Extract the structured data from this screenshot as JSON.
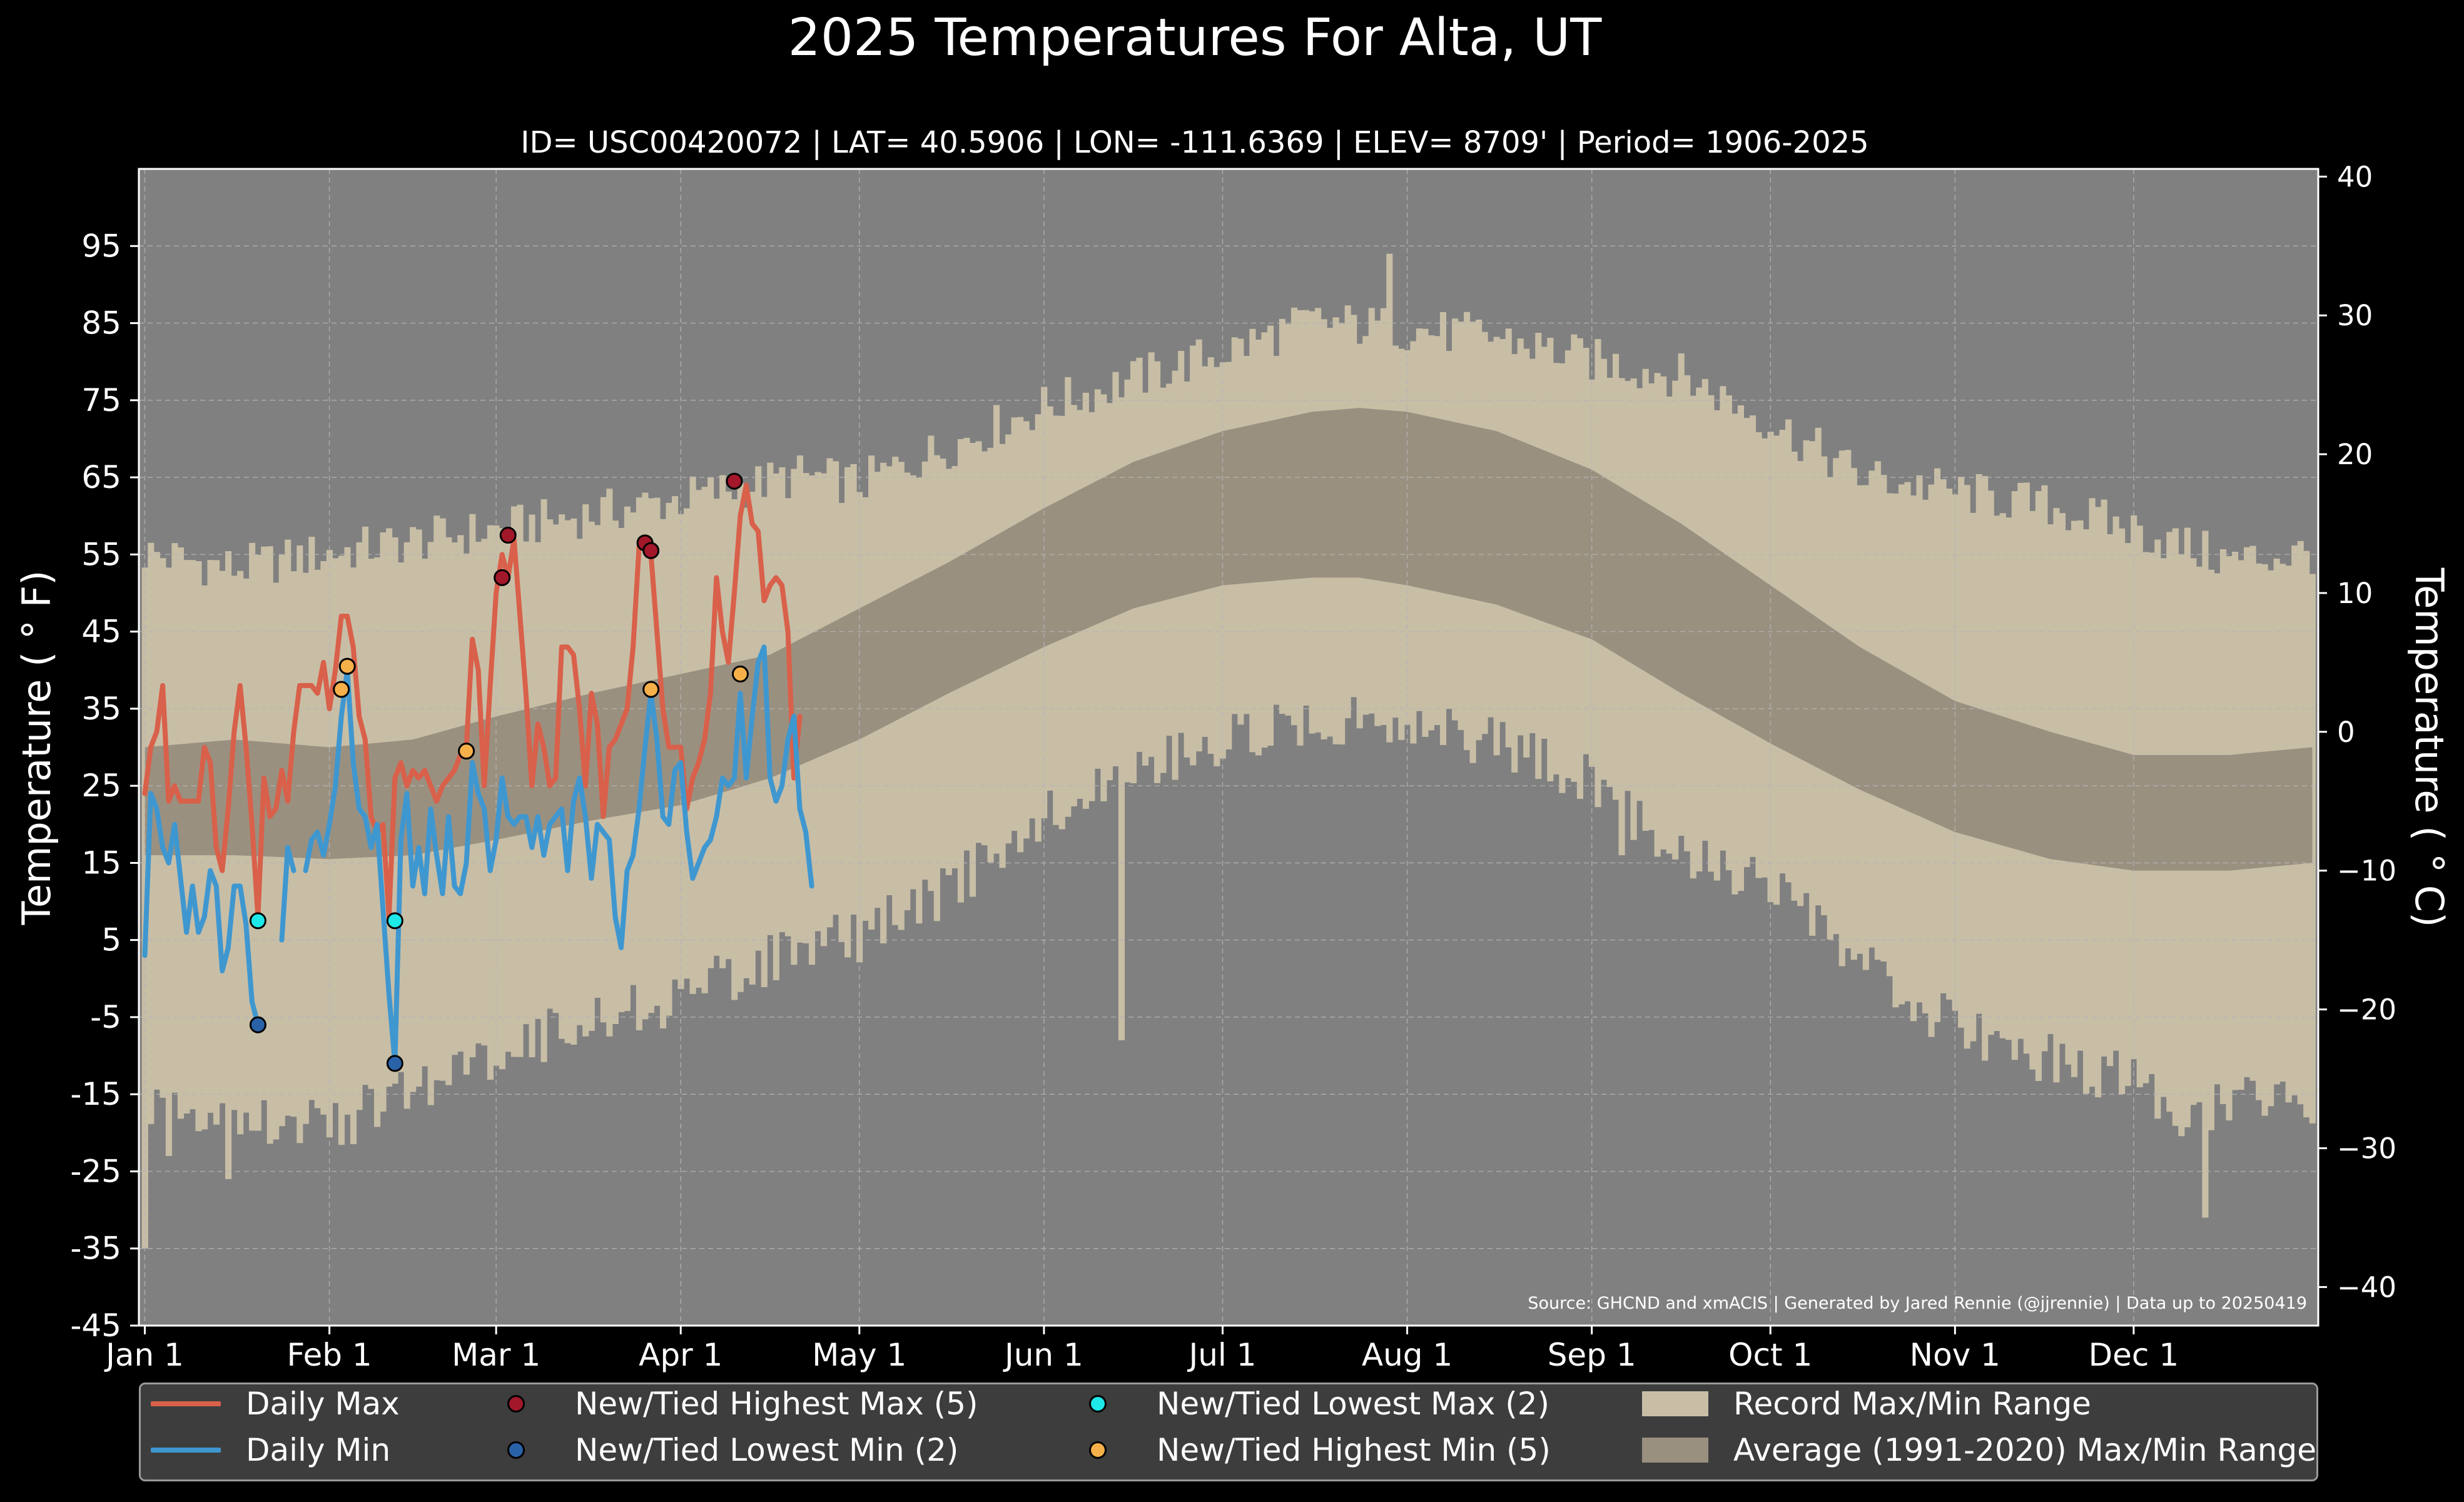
{
  "title": "2025 Temperatures For Alta, UT",
  "subtitle": "ID= USC00420072 | LAT= 40.5906 | LON= -111.6369 | ELEV= 8709' | Period= 1906-2025",
  "source": "Source: GHCND and xmACIS | Generated by Jared Rennie (@jjrennie) | Data up to 20250419",
  "colors": {
    "background": "#000000",
    "plot_bg": "#808080",
    "record_range": "#c8bea6",
    "average_range": "#9a9080",
    "daily_max": "#d9604a",
    "daily_min": "#3f97d0",
    "new_high_max": "#a3172a",
    "new_low_min": "#2a62a8",
    "new_low_max": "#1ee8e8",
    "new_high_min": "#f6b04a"
  },
  "chart_data": {
    "type": "line",
    "title": "2025 Temperatures For Alta, UT",
    "xlabel": "",
    "ylabel": "Temperature ( ° F)",
    "ylabel_right": "Temperature ( ° C)",
    "ylim": [
      -45,
      105
    ],
    "yticks": [
      -45,
      -35,
      -25,
      -15,
      -5,
      5,
      15,
      25,
      35,
      45,
      55,
      65,
      75,
      85,
      95
    ],
    "ytick_labels": [
      "-45",
      "-35",
      "-25",
      "-15",
      "-5",
      "5",
      "15",
      "25",
      "35",
      "45",
      "55",
      "65",
      "75",
      "85",
      "95"
    ],
    "right_ticks": [
      -40,
      -30,
      -20,
      -10,
      0,
      10,
      20,
      30,
      40
    ],
    "right_tick_labels": [
      "−40",
      "−30",
      "−20",
      "−10",
      "0",
      "10",
      "20",
      "30",
      "40"
    ],
    "xlim_days": [
      -1,
      365
    ],
    "x_ticks": [
      {
        "label": "Jan 1",
        "day": 0
      },
      {
        "label": "Feb 1",
        "day": 31
      },
      {
        "label": "Mar 1",
        "day": 59
      },
      {
        "label": "Apr 1",
        "day": 90
      },
      {
        "label": "May 1",
        "day": 120
      },
      {
        "label": "Jun 1",
        "day": 151
      },
      {
        "label": "Jul 1",
        "day": 181
      },
      {
        "label": "Aug 1",
        "day": 212
      },
      {
        "label": "Sep 1",
        "day": 243
      },
      {
        "label": "Oct 1",
        "day": 273
      },
      {
        "label": "Nov 1",
        "day": 304
      },
      {
        "label": "Dec 1",
        "day": 334
      }
    ],
    "grid": true,
    "legend_position": "bottom",
    "series": [
      {
        "name": "Daily Max",
        "kind": "line",
        "color": "#d9604a",
        "values": [
          24,
          30,
          32,
          38,
          23,
          25,
          23,
          23,
          23,
          23,
          30,
          28,
          17,
          14,
          22,
          32,
          38,
          30,
          20,
          8,
          26,
          21,
          22,
          27,
          23,
          32,
          38,
          38,
          38,
          37,
          41,
          35,
          40,
          47,
          47,
          43,
          34,
          31,
          21,
          19,
          20,
          8,
          26,
          28,
          25,
          27,
          26,
          27,
          25,
          23,
          25,
          26,
          27,
          29,
          30,
          44,
          40,
          25,
          38,
          50,
          55,
          52,
          57,
          47,
          37,
          25,
          33,
          30,
          25,
          26,
          43,
          43,
          42,
          35,
          25,
          37,
          33,
          21,
          30,
          31,
          33,
          35,
          43,
          56,
          56,
          55,
          45,
          35,
          30,
          30,
          30,
          22,
          26,
          28,
          31,
          37,
          52,
          45,
          41,
          50,
          60,
          64,
          59,
          58,
          49,
          51,
          52,
          51,
          45,
          26,
          34
        ]
      },
      {
        "name": "Daily Min",
        "kind": "line",
        "color": "#3f97d0",
        "values": [
          3,
          24,
          22,
          17,
          15,
          20,
          13,
          6,
          12,
          6,
          8,
          14,
          12,
          1,
          4,
          12,
          12,
          7,
          -3,
          -6,
          -6,
          null,
          null,
          5,
          17,
          14,
          null,
          14,
          18,
          19,
          16,
          20,
          25,
          34,
          40,
          28,
          22,
          21,
          17,
          20,
          9,
          -2,
          -11,
          18,
          24,
          12,
          17,
          11,
          22,
          16,
          11,
          21,
          12,
          11,
          15,
          28,
          24,
          22,
          14,
          18,
          26,
          21,
          20,
          21,
          21,
          17,
          21,
          16,
          20,
          21,
          22,
          14,
          23,
          26,
          21,
          13,
          20,
          19,
          18,
          8,
          4,
          14,
          16,
          22,
          30,
          37,
          31,
          21,
          20,
          27,
          28,
          19,
          13,
          15,
          17,
          18,
          21,
          26,
          25,
          26,
          37,
          26,
          34,
          41,
          43,
          26,
          23,
          25,
          31,
          34,
          22,
          19,
          12
        ]
      },
      {
        "name": "New/Tied Highest Max (5)",
        "kind": "markers",
        "color": "#a3172a",
        "points": [
          {
            "x": 60,
            "y": 52
          },
          {
            "x": 61,
            "y": 57.5
          },
          {
            "x": 84,
            "y": 56.5
          },
          {
            "x": 85,
            "y": 55.5
          },
          {
            "x": 99,
            "y": 64.5
          }
        ]
      },
      {
        "name": "New/Tied Lowest Min (2)",
        "kind": "markers",
        "color": "#2a62a8",
        "points": [
          {
            "x": 19,
            "y": -6
          },
          {
            "x": 42,
            "y": -11
          }
        ]
      },
      {
        "name": "New/Tied Lowest Max (2)",
        "kind": "markers",
        "color": "#1ee8e8",
        "points": [
          {
            "x": 19,
            "y": 7.5
          },
          {
            "x": 42,
            "y": 7.5
          }
        ]
      },
      {
        "name": "New/Tied Highest Min (5)",
        "kind": "markers",
        "color": "#f6b04a",
        "points": [
          {
            "x": 33,
            "y": 37.5
          },
          {
            "x": 34,
            "y": 40.5
          },
          {
            "x": 54,
            "y": 29.5
          },
          {
            "x": 85,
            "y": 37.5
          },
          {
            "x": 100,
            "y": 39.5
          }
        ]
      },
      {
        "name": "Record Max/Min Range",
        "kind": "band",
        "color": "#c8bea6",
        "upper_anchors": [
          [
            0,
            54
          ],
          [
            15,
            52
          ],
          [
            31,
            54
          ],
          [
            59,
            57
          ],
          [
            90,
            61
          ],
          [
            110,
            64
          ],
          [
            120,
            63
          ],
          [
            151,
            73
          ],
          [
            181,
            80
          ],
          [
            196,
            84
          ],
          [
            212,
            83
          ],
          [
            227,
            82
          ],
          [
            243,
            79
          ],
          [
            258,
            77
          ],
          [
            273,
            71
          ],
          [
            288,
            64
          ],
          [
            304,
            62
          ],
          [
            320,
            60
          ],
          [
            334,
            57
          ],
          [
            350,
            53
          ],
          [
            364,
            54
          ]
        ],
        "lower_anchors": [
          [
            0,
            -15
          ],
          [
            15,
            -16
          ],
          [
            31,
            -18
          ],
          [
            45,
            -13
          ],
          [
            59,
            -8
          ],
          [
            75,
            -4
          ],
          [
            90,
            -1
          ],
          [
            105,
            4
          ],
          [
            120,
            7
          ],
          [
            135,
            13
          ],
          [
            151,
            22
          ],
          [
            166,
            29
          ],
          [
            181,
            32
          ],
          [
            196,
            35
          ],
          [
            212,
            35
          ],
          [
            227,
            32
          ],
          [
            243,
            27
          ],
          [
            258,
            18
          ],
          [
            273,
            13
          ],
          [
            288,
            3
          ],
          [
            304,
            -5
          ],
          [
            320,
            -9
          ],
          [
            334,
            -12
          ],
          [
            345,
            -17
          ],
          [
            355,
            -13
          ],
          [
            364,
            -15
          ]
        ],
        "spikes": [
          [
            0,
            -35
          ],
          [
            4,
            -23
          ],
          [
            14,
            -26
          ],
          [
            209,
            94
          ],
          [
            164,
            -8
          ],
          [
            248,
            16
          ],
          [
            346,
            -31
          ]
        ]
      },
      {
        "name": "Average (1991-2020) Max/Min Range",
        "kind": "band",
        "color": "#9a9080",
        "upper_anchors": [
          [
            0,
            30
          ],
          [
            15,
            31
          ],
          [
            31,
            30
          ],
          [
            45,
            31
          ],
          [
            59,
            34
          ],
          [
            75,
            37
          ],
          [
            90,
            39.5
          ],
          [
            105,
            42
          ],
          [
            120,
            48
          ],
          [
            135,
            54
          ],
          [
            151,
            61
          ],
          [
            166,
            67
          ],
          [
            181,
            71
          ],
          [
            196,
            73.5
          ],
          [
            204,
            74
          ],
          [
            212,
            73.5
          ],
          [
            227,
            71
          ],
          [
            243,
            66
          ],
          [
            258,
            59
          ],
          [
            273,
            51
          ],
          [
            288,
            43
          ],
          [
            304,
            36
          ],
          [
            320,
            32
          ],
          [
            334,
            29
          ],
          [
            350,
            29
          ],
          [
            364,
            30
          ]
        ],
        "lower_anchors": [
          [
            0,
            16
          ],
          [
            15,
            16
          ],
          [
            31,
            15.5
          ],
          [
            45,
            16
          ],
          [
            59,
            18
          ],
          [
            75,
            20.5
          ],
          [
            90,
            22.5
          ],
          [
            105,
            26
          ],
          [
            120,
            31
          ],
          [
            135,
            37
          ],
          [
            151,
            43
          ],
          [
            166,
            48
          ],
          [
            181,
            51
          ],
          [
            196,
            52
          ],
          [
            204,
            52
          ],
          [
            212,
            51
          ],
          [
            227,
            48.5
          ],
          [
            243,
            44
          ],
          [
            258,
            37
          ],
          [
            273,
            30.5
          ],
          [
            288,
            24.5
          ],
          [
            304,
            19
          ],
          [
            320,
            15.5
          ],
          [
            334,
            14
          ],
          [
            350,
            14
          ],
          [
            364,
            15
          ]
        ]
      }
    ]
  },
  "legend": {
    "items": [
      {
        "label": "Daily Max",
        "kind": "line",
        "color": "#d9604a"
      },
      {
        "label": "Daily Min",
        "kind": "line",
        "color": "#3f97d0"
      },
      {
        "label": "New/Tied Highest Max (5)",
        "kind": "dot",
        "color": "#a3172a"
      },
      {
        "label": "New/Tied Lowest Min (2)",
        "kind": "dot",
        "color": "#2a62a8"
      },
      {
        "label": "New/Tied Lowest Max (2)",
        "kind": "dot",
        "color": "#1ee8e8"
      },
      {
        "label": "New/Tied Highest Min (5)",
        "kind": "dot",
        "color": "#f6b04a"
      },
      {
        "label": "Record Max/Min Range",
        "kind": "patch",
        "color": "#c8bea6"
      },
      {
        "label": "Average (1991-2020) Max/Min Range",
        "kind": "patch",
        "color": "#9a9080"
      }
    ]
  }
}
